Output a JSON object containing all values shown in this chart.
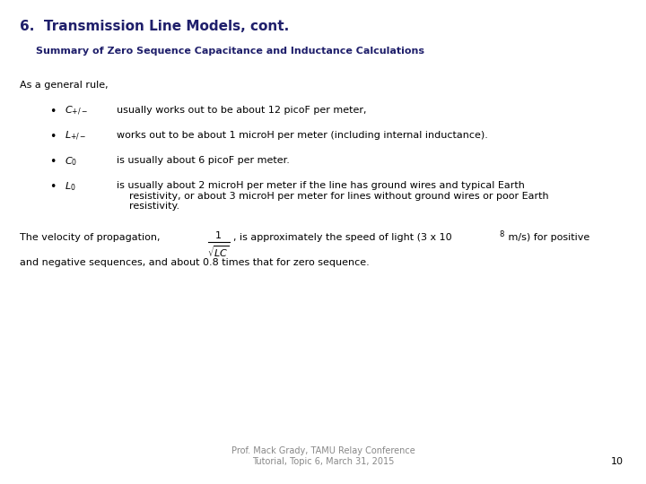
{
  "title": "6.  Transmission Line Models, cont.",
  "subtitle": "Summary of Zero Sequence Capacitance and Inductance Calculations",
  "bg_color": "#ffffff",
  "title_color": "#1F1F6B",
  "subtitle_color": "#1F1F6B",
  "body_color": "#000000",
  "footer_color": "#888888",
  "page_number": "10",
  "general_rule": "As a general rule,",
  "bullet_symbols": [
    "$C_{+/-}$",
    "$L_{+/-}$",
    "$C_0$",
    "$L_0$"
  ],
  "bullet_texts": [
    "usually works out to be about 12 picoF per meter,",
    "works out to be about 1 microH per meter (including internal inductance).",
    "is usually about 6 picoF per meter.",
    "is usually about 2 microH per meter if the line has ground wires and typical Earth\nresistivity, or about 3 microH per meter for lines without ground wires or poor Earth\nresistivity."
  ],
  "velocity_pre": "The velocity of propagation,",
  "velocity_post": ", is approximately the speed of light (3 x 10",
  "velocity_exp": "8",
  "velocity_post2": " m/s) for positive",
  "velocity_line2": "and negative sequences, and about 0.8 times that for zero sequence.",
  "footer_line1": "Prof. Mack Grady, TAMU Relay Conference",
  "footer_line2": "Tutorial, Topic 6, March 31, 2015",
  "title_fontsize": 11,
  "subtitle_fontsize": 8,
  "body_fontsize": 8,
  "footer_fontsize": 7
}
